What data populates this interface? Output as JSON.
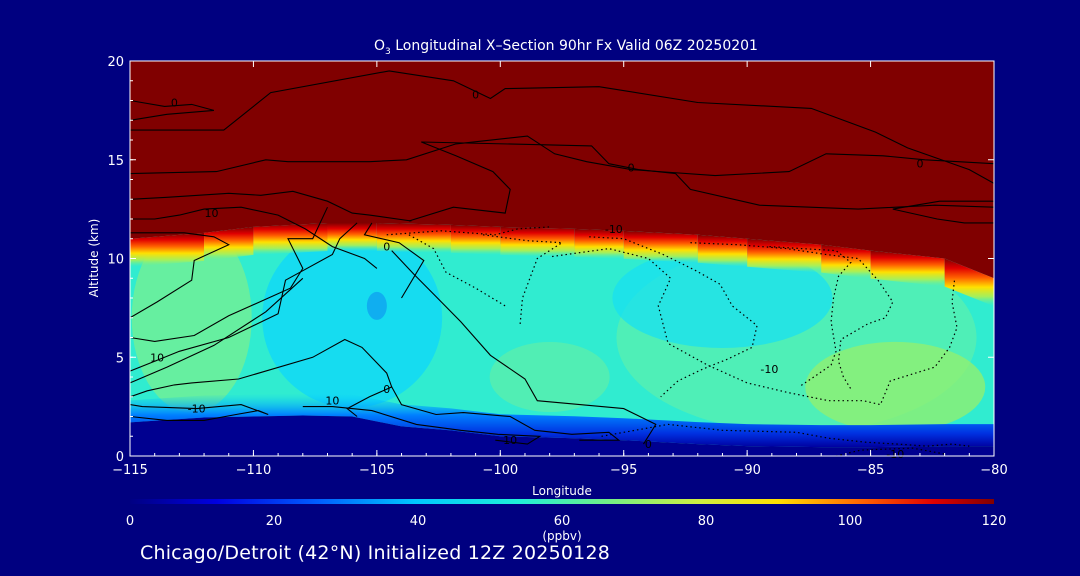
{
  "chart_data": {
    "type": "heatmap",
    "title_main": "O",
    "title_sub": "3",
    "title_rest": " Longitudinal X–Section 90hr  Fx Valid 06Z 20250201",
    "xlabel": "Longitude",
    "ylabel": "Altitude (km)",
    "xlim": [
      -115,
      -80
    ],
    "ylim": [
      0,
      20
    ],
    "x_ticks": [
      -115,
      -110,
      -105,
      -100,
      -95,
      -90,
      -85,
      -80
    ],
    "x_tick_labels": [
      "−115",
      "−110",
      "−105",
      "−100",
      "−95",
      "−90",
      "−85",
      "−80"
    ],
    "y_ticks": [
      0,
      5,
      10,
      15,
      20
    ],
    "y_tick_labels": [
      "0",
      "5",
      "10",
      "15",
      "20"
    ],
    "colorbar": {
      "label": "(ppbv)",
      "ticks": [
        0,
        20,
        40,
        60,
        80,
        100,
        120
      ],
      "tick_labels": [
        "0",
        "20",
        "40",
        "60",
        "80",
        "100",
        "120"
      ],
      "range": [
        0,
        120
      ]
    },
    "ozone_field": {
      "tropopause_height_km": [
        [
          -115,
          11.0
        ],
        [
          -112,
          11.3
        ],
        [
          -110,
          11.6
        ],
        [
          -107,
          11.8
        ],
        [
          -105,
          11.8
        ],
        [
          -102,
          11.7
        ],
        [
          -100,
          11.6
        ],
        [
          -97,
          11.5
        ],
        [
          -95,
          11.4
        ],
        [
          -92,
          11.2
        ],
        [
          -90,
          11.0
        ],
        [
          -87,
          10.7
        ],
        [
          -85,
          10.4
        ],
        [
          -82,
          10.0
        ],
        [
          -80,
          9.0
        ]
      ],
      "surface_boundary_km": [
        [
          -115,
          1.7
        ],
        [
          -112,
          1.95
        ],
        [
          -110,
          2.0
        ],
        [
          -108,
          2.05
        ],
        [
          -106,
          2.0
        ],
        [
          -104,
          1.5
        ],
        [
          -102,
          1.3
        ],
        [
          -100,
          1.0
        ],
        [
          -97,
          0.9
        ],
        [
          -95,
          0.8
        ],
        [
          -92,
          0.6
        ],
        [
          -90,
          0.5
        ],
        [
          -87,
          0.45
        ],
        [
          -85,
          0.45
        ],
        [
          -82,
          0.5
        ],
        [
          -80,
          0.5
        ]
      ],
      "stratosphere_ppbv": 120,
      "surface_layer_ppbv": 10
    },
    "contour_labels": [
      {
        "text": "0",
        "lon": -113.2,
        "alt": 17.9
      },
      {
        "text": "0",
        "lon": -101.0,
        "alt": 18.3
      },
      {
        "text": "0",
        "lon": -94.7,
        "alt": 14.6
      },
      {
        "text": "0",
        "lon": -83.0,
        "alt": 14.8
      },
      {
        "text": "10",
        "lon": -111.7,
        "alt": 12.3
      },
      {
        "text": "-10",
        "lon": -95.4,
        "alt": 11.5
      },
      {
        "text": "0",
        "lon": -104.6,
        "alt": 10.6
      },
      {
        "text": "10",
        "lon": -113.9,
        "alt": 5.0
      },
      {
        "text": "-10",
        "lon": -89.1,
        "alt": 4.4
      },
      {
        "text": "0",
        "lon": -104.6,
        "alt": 3.4
      },
      {
        "text": "10",
        "lon": -106.8,
        "alt": 2.8
      },
      {
        "text": "-10",
        "lon": -112.3,
        "alt": 2.4
      },
      {
        "text": "10",
        "lon": -99.6,
        "alt": 0.8
      },
      {
        "text": "0",
        "lon": -94.0,
        "alt": 0.6
      },
      {
        "text": "-10",
        "lon": -84.0,
        "alt": 0.1
      }
    ]
  },
  "footer": "Chicago/Detroit (42°N) Initialized 12Z 20250128"
}
